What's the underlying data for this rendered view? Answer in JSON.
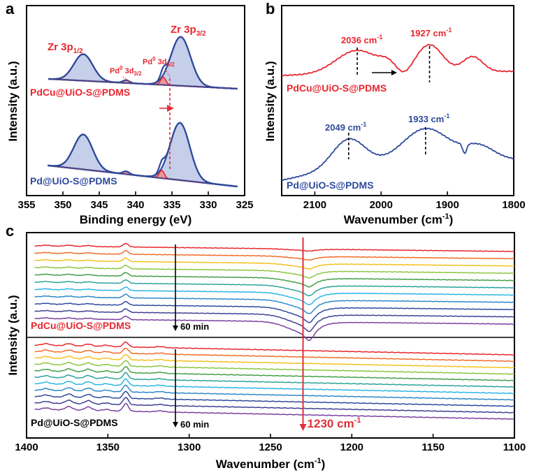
{
  "colors": {
    "red": "#e8262e",
    "blue": "#2e4a9c",
    "marker_red": "#e0303a",
    "fill_blue": "#7e95cf",
    "fill_red": "#f08a8a",
    "ramp": [
      "#e8262e",
      "#f26b2b",
      "#f5c11c",
      "#8cc63f",
      "#43a047",
      "#2aa39a",
      "#29b6e6",
      "#2d88c9",
      "#2e4a9c",
      "#3f3f93",
      "#7b3fa0"
    ]
  },
  "chart_data": [
    {
      "panel": "a",
      "type": "line",
      "xlabel": "Binding energy (eV)",
      "ylabel": "Intensity (a.u.)",
      "xlim": [
        355,
        325
      ],
      "xticks": [
        355,
        350,
        345,
        340,
        335,
        330,
        325
      ],
      "annotations": {
        "zr_3p12": {
          "main": "Zr 3p",
          "sub": "1/2"
        },
        "zr_3p32": {
          "main": "Zr 3p",
          "sub": "3/2"
        },
        "pd_3d32": {
          "sup": "0",
          "main": "Pd",
          "mid": " 3d",
          "sub": "3/2"
        },
        "pd_3d52": {
          "sup": "0",
          "main": "Pd",
          "mid": " 3d",
          "sub": "5/2"
        }
      },
      "series": [
        {
          "name": "PdCu@UiO-S@PDMS",
          "zr_3p12_peak": 347.2,
          "zr_3p32_peak": 333.8,
          "pd_3d32_peak": 341.3,
          "pd_3d52_peak": 336.2,
          "offset": 1.0
        },
        {
          "name": "Pd@UiO-S@PDMS",
          "zr_3p12_peak": 347.2,
          "zr_3p32_peak": 333.9,
          "pd_3d32_peak": 341.3,
          "pd_3d52_peak": 336.4,
          "offset": 0.0
        }
      ]
    },
    {
      "panel": "b",
      "type": "line",
      "xlabel": "Wavenumber (cm",
      "xlabel_sup": "-1",
      "xlabel_end": ")",
      "ylabel": "Intensity (a.u.)",
      "xlim": [
        2150,
        1800
      ],
      "xticks": [
        2100,
        2000,
        1900,
        1800
      ],
      "series": [
        {
          "name": "PdCu@UiO-S@PDMS",
          "peaks": [
            {
              "x": 2036,
              "label": "2036 cm",
              "sup": "-1"
            },
            {
              "x": 1927,
              "label": "1927 cm",
              "sup": "-1"
            }
          ]
        },
        {
          "name": "Pd@UiO-S@PDMS",
          "peaks": [
            {
              "x": 2049,
              "label": "2049 cm",
              "sup": "-1"
            },
            {
              "x": 1933,
              "label": "1933 cm",
              "sup": "-1"
            }
          ]
        }
      ]
    },
    {
      "panel": "c",
      "type": "line",
      "xlabel": "Wavenumber (cm",
      "xlabel_sup": "-1",
      "xlabel_end": ")",
      "ylabel": "Intensity (a.u.)",
      "xlim": [
        1400,
        1100
      ],
      "xticks": [
        1400,
        1350,
        1300,
        1250,
        1200,
        1150,
        1100
      ],
      "marker": {
        "x": 1230,
        "label": "1230 cm",
        "sup": "-1"
      },
      "time_label": "60 min",
      "series": [
        {
          "name": "PdCu@UiO-S@PDMS",
          "n_spectra": 11
        },
        {
          "name": "Pd@UiO-S@PDMS",
          "n_spectra": 11
        }
      ]
    }
  ]
}
